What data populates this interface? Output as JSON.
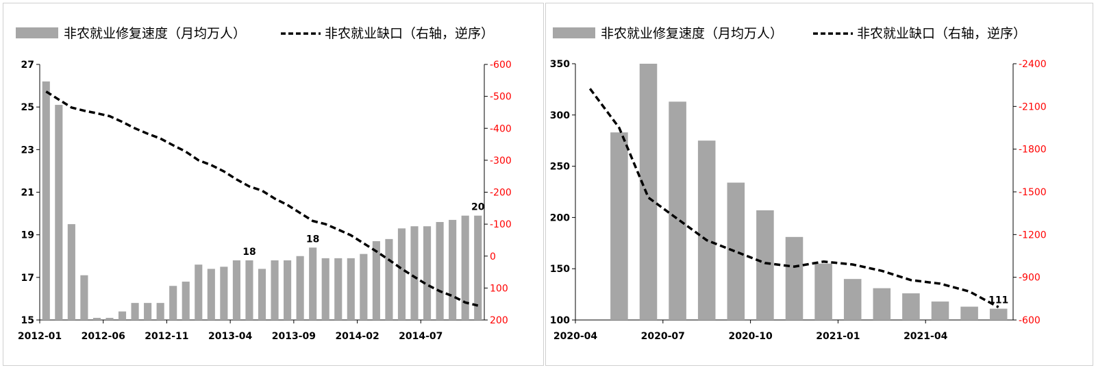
{
  "colors": {
    "bar": "#a6a6a6",
    "line": "#000000",
    "right_axis_text": "#ff0000",
    "left_axis_text": "#000000"
  },
  "chart_data": [
    {
      "type": "bar+line",
      "legend": {
        "bar_label": "非农就业修复速度（月均万人）",
        "line_label": "非农就业缺口（右轴，逆序）",
        "placement": "top"
      },
      "left_axis": {
        "ticks": [
          "27",
          "25",
          "23",
          "21",
          "19",
          "17",
          "15"
        ],
        "ylim": [
          15,
          27
        ]
      },
      "right_axis": {
        "ticks": [
          "-600",
          "-500",
          "-400",
          "-300",
          "-200",
          "-100",
          "0",
          "100",
          "200"
        ],
        "ylim": [
          -600,
          200
        ],
        "reversed": true
      },
      "x_tick_labels": [
        "2012-01",
        "2012-06",
        "2012-11",
        "2013-04",
        "2013-09",
        "2014-02",
        "2014-07"
      ],
      "categories": [
        "2012-01",
        "2012-02",
        "2012-03",
        "2012-04",
        "2012-05",
        "2012-06",
        "2012-07",
        "2012-08",
        "2012-09",
        "2012-10",
        "2012-11",
        "2012-12",
        "2013-01",
        "2013-02",
        "2013-03",
        "2013-04",
        "2013-05",
        "2013-06",
        "2013-07",
        "2013-08",
        "2013-09",
        "2013-10",
        "2013-11",
        "2013-12",
        "2014-01",
        "2014-02",
        "2014-03",
        "2014-04",
        "2014-05",
        "2014-06",
        "2014-07",
        "2014-08",
        "2014-09",
        "2014-10",
        "2014-11"
      ],
      "bar_values": [
        26.2,
        25.1,
        19.5,
        17.1,
        15.1,
        15.1,
        15.4,
        15.8,
        15.8,
        15.8,
        16.6,
        16.8,
        17.6,
        17.4,
        17.5,
        17.8,
        17.8,
        17.4,
        17.8,
        17.8,
        18.0,
        18.4,
        17.9,
        17.9,
        17.9,
        18.1,
        18.7,
        18.8,
        19.3,
        19.4,
        19.4,
        19.6,
        19.7,
        19.9,
        19.9
      ],
      "bar_labels": [
        {
          "index": 16,
          "text": "18"
        },
        {
          "index": 21,
          "text": "18"
        },
        {
          "index": 34,
          "text": "20"
        }
      ],
      "line_values": [
        -515,
        -490,
        -465,
        -455,
        -447,
        -438,
        -420,
        -400,
        -383,
        -368,
        -347,
        -327,
        -300,
        -285,
        -265,
        -240,
        -218,
        -205,
        -180,
        -160,
        -135,
        -110,
        -100,
        -83,
        -65,
        -40,
        -15,
        12,
        40,
        65,
        90,
        110,
        125,
        145,
        155
      ]
    },
    {
      "type": "bar+line",
      "legend": {
        "bar_label": "非农就业修复速度（月均万人）",
        "line_label": "非农就业缺口（右轴，逆序）",
        "placement": "top"
      },
      "left_axis": {
        "ticks": [
          "350",
          "300",
          "250",
          "200",
          "150",
          "100"
        ],
        "ylim": [
          100,
          350
        ]
      },
      "right_axis": {
        "ticks": [
          "-2400",
          "-2100",
          "-1800",
          "-1500",
          "-1200",
          "-900",
          "-600"
        ],
        "ylim": [
          -2400,
          -600
        ],
        "reversed": true
      },
      "x_tick_labels": [
        "2020-04",
        "2020-07",
        "2020-10",
        "2021-01",
        "2021-04"
      ],
      "categories": [
        "2020-04",
        "2020-05",
        "2020-06",
        "2020-07",
        "2020-08",
        "2020-09",
        "2020-10",
        "2020-11",
        "2020-12",
        "2021-01",
        "2021-02",
        "2021-03",
        "2021-04",
        "2021-05",
        "2021-06"
      ],
      "bar_values": [
        null,
        283,
        350,
        313,
        275,
        234,
        207,
        181,
        155,
        140,
        131,
        126,
        118,
        113,
        111
      ],
      "bar_labels": [
        {
          "index": 14,
          "text": "111"
        }
      ],
      "line_values": [
        -2225,
        -1950,
        -1460,
        -1310,
        -1160,
        -1080,
        -1000,
        -975,
        -1010,
        -990,
        -945,
        -880,
        -855,
        -800,
        -690
      ]
    }
  ]
}
